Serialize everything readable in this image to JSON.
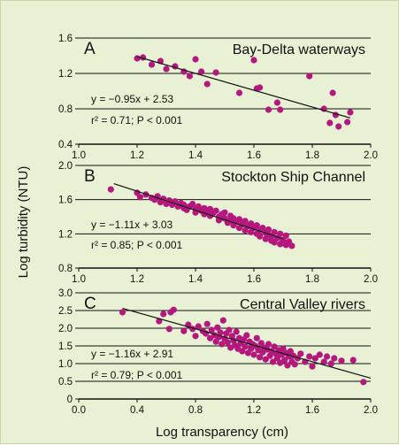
{
  "figure": {
    "ylabel": "Log turbidity (NTU)",
    "xlabel": "Log transparency (cm)",
    "point_color": "#b5177f",
    "background_color": "#e9f1d4",
    "grid_color": "#111111"
  },
  "chart_data": [
    {
      "type": "scatter",
      "letter": "A",
      "title": "Bay-Delta waterways",
      "equation_text": "y = −0.95x + 2.53",
      "stats_text": "r² = 0.71; P < 0.001",
      "xlim": [
        1.0,
        2.0
      ],
      "ylim": [
        0.4,
        1.6
      ],
      "xticks": [
        "1.0",
        "1.2",
        "1.4",
        "1.6",
        "1.8",
        "2.0"
      ],
      "yticks": [
        "0.4",
        "0.8",
        "1.2",
        "1.6"
      ],
      "grid": "horizontal",
      "fit": {
        "slope": -0.95,
        "intercept": 2.53,
        "x_range": [
          1.2,
          1.93
        ]
      },
      "points": [
        [
          1.2,
          1.37
        ],
        [
          1.22,
          1.38
        ],
        [
          1.25,
          1.3
        ],
        [
          1.28,
          1.34
        ],
        [
          1.3,
          1.25
        ],
        [
          1.33,
          1.28
        ],
        [
          1.36,
          1.22
        ],
        [
          1.38,
          1.17
        ],
        [
          1.4,
          1.36
        ],
        [
          1.42,
          1.22
        ],
        [
          1.44,
          1.08
        ],
        [
          1.47,
          1.21
        ],
        [
          1.55,
          0.98
        ],
        [
          1.6,
          1.35
        ],
        [
          1.61,
          1.03
        ],
        [
          1.62,
          1.04
        ],
        [
          1.65,
          0.79
        ],
        [
          1.68,
          0.87
        ],
        [
          1.69,
          0.79
        ],
        [
          1.79,
          1.17
        ],
        [
          1.84,
          0.8
        ],
        [
          1.86,
          0.64
        ],
        [
          1.87,
          0.98
        ],
        [
          1.88,
          0.73
        ],
        [
          1.89,
          0.6
        ],
        [
          1.92,
          0.65
        ],
        [
          1.93,
          0.76
        ]
      ]
    },
    {
      "type": "scatter",
      "letter": "B",
      "title": "Stockton Ship Channel",
      "equation_text": "y = −1.11x + 3.03",
      "stats_text": "r² = 0.85; P < 0.001",
      "xlim": [
        1.0,
        2.0
      ],
      "ylim": [
        0.8,
        2.0
      ],
      "xticks": [
        "1.0",
        "1.2",
        "1.4",
        "1.6",
        "1.8",
        "2.0"
      ],
      "yticks": [
        "0.8",
        "1.2",
        "1.6",
        "2.0"
      ],
      "grid": "horizontal",
      "fit": {
        "slope": -1.11,
        "intercept": 3.03,
        "x_range": [
          1.12,
          1.7
        ]
      },
      "points": [
        [
          1.11,
          1.72
        ],
        [
          1.2,
          1.68
        ],
        [
          1.21,
          1.63
        ],
        [
          1.23,
          1.66
        ],
        [
          1.25,
          1.62
        ],
        [
          1.26,
          1.6
        ],
        [
          1.27,
          1.64
        ],
        [
          1.28,
          1.57
        ],
        [
          1.29,
          1.61
        ],
        [
          1.3,
          1.55
        ],
        [
          1.31,
          1.59
        ],
        [
          1.32,
          1.54
        ],
        [
          1.33,
          1.58
        ],
        [
          1.34,
          1.52
        ],
        [
          1.35,
          1.56
        ],
        [
          1.36,
          1.5
        ],
        [
          1.36,
          1.54
        ],
        [
          1.37,
          1.48
        ],
        [
          1.38,
          1.52
        ],
        [
          1.39,
          1.55
        ],
        [
          1.4,
          1.49
        ],
        [
          1.4,
          1.45
        ],
        [
          1.41,
          1.52
        ],
        [
          1.42,
          1.47
        ],
        [
          1.43,
          1.5
        ],
        [
          1.43,
          1.43
        ],
        [
          1.44,
          1.46
        ],
        [
          1.45,
          1.49
        ],
        [
          1.45,
          1.41
        ],
        [
          1.46,
          1.44
        ],
        [
          1.47,
          1.47
        ],
        [
          1.48,
          1.4
        ],
        [
          1.48,
          1.36
        ],
        [
          1.49,
          1.43
        ],
        [
          1.5,
          1.38
        ],
        [
          1.5,
          1.45
        ],
        [
          1.51,
          1.33
        ],
        [
          1.52,
          1.41
        ],
        [
          1.52,
          1.36
        ],
        [
          1.53,
          1.3
        ],
        [
          1.53,
          1.38
        ],
        [
          1.54,
          1.34
        ],
        [
          1.55,
          1.27
        ],
        [
          1.55,
          1.37
        ],
        [
          1.56,
          1.31
        ],
        [
          1.57,
          1.35
        ],
        [
          1.57,
          1.24
        ],
        [
          1.58,
          1.29
        ],
        [
          1.59,
          1.22
        ],
        [
          1.59,
          1.32
        ],
        [
          1.6,
          1.27
        ],
        [
          1.61,
          1.2
        ],
        [
          1.61,
          1.3
        ],
        [
          1.62,
          1.24
        ],
        [
          1.62,
          1.17
        ],
        [
          1.63,
          1.27
        ],
        [
          1.64,
          1.21
        ],
        [
          1.64,
          1.14
        ],
        [
          1.65,
          1.19
        ],
        [
          1.65,
          1.25
        ],
        [
          1.66,
          1.12
        ],
        [
          1.66,
          1.17
        ],
        [
          1.67,
          1.22
        ],
        [
          1.67,
          1.1
        ],
        [
          1.68,
          1.15
        ],
        [
          1.69,
          1.2
        ],
        [
          1.69,
          1.08
        ],
        [
          1.7,
          1.13
        ],
        [
          1.71,
          1.07
        ],
        [
          1.71,
          1.18
        ],
        [
          1.72,
          1.11
        ],
        [
          1.73,
          1.06
        ]
      ]
    },
    {
      "type": "scatter",
      "letter": "C",
      "title": "Central Valley rivers",
      "equation_text": "y = −1.16x + 2.91",
      "stats_text": "r² = 0.79; P < 0.001",
      "xlim": [
        0.0,
        2.0
      ],
      "ylim": [
        0.0,
        3.0
      ],
      "xticks": [
        "0.0",
        "0.4",
        "0.8",
        "1.2",
        "1.6",
        "2.0"
      ],
      "yticks": [
        "0",
        "0.5",
        "1.0",
        "1.5",
        "2.0",
        "2.5",
        "3.0"
      ],
      "grid": "horizontal",
      "fit": {
        "slope": -1.16,
        "intercept": 2.91,
        "x_range": [
          0.3,
          2.0
        ]
      },
      "points": [
        [
          0.3,
          2.45
        ],
        [
          0.55,
          2.2
        ],
        [
          0.58,
          2.4
        ],
        [
          0.62,
          1.98
        ],
        [
          0.63,
          2.45
        ],
        [
          0.65,
          2.52
        ],
        [
          0.72,
          1.92
        ],
        [
          0.75,
          2.1
        ],
        [
          0.78,
          1.98
        ],
        [
          0.8,
          1.78
        ],
        [
          0.82,
          2.05
        ],
        [
          0.85,
          1.92
        ],
        [
          0.87,
          1.85
        ],
        [
          0.88,
          2.12
        ],
        [
          0.9,
          1.72
        ],
        [
          0.91,
          1.95
        ],
        [
          0.93,
          1.8
        ],
        [
          0.94,
          1.62
        ],
        [
          0.95,
          2.02
        ],
        [
          0.96,
          1.75
        ],
        [
          0.97,
          1.88
        ],
        [
          0.98,
          1.55
        ],
        [
          0.99,
          2.22
        ],
        [
          1.0,
          1.7
        ],
        [
          1.01,
          1.85
        ],
        [
          1.02,
          1.6
        ],
        [
          1.03,
          1.95
        ],
        [
          1.04,
          1.45
        ],
        [
          1.05,
          1.78
        ],
        [
          1.06,
          1.65
        ],
        [
          1.07,
          1.52
        ],
        [
          1.08,
          1.9
        ],
        [
          1.09,
          1.42
        ],
        [
          1.1,
          1.72
        ],
        [
          1.11,
          1.58
        ],
        [
          1.12,
          1.35
        ],
        [
          1.13,
          1.68
        ],
        [
          1.14,
          1.48
        ],
        [
          1.15,
          1.8
        ],
        [
          1.16,
          1.3
        ],
        [
          1.17,
          1.62
        ],
        [
          1.18,
          1.42
        ],
        [
          1.19,
          1.55
        ],
        [
          1.2,
          1.25
        ],
        [
          1.21,
          1.5
        ],
        [
          1.22,
          1.72
        ],
        [
          1.23,
          1.38
        ],
        [
          1.24,
          1.18
        ],
        [
          1.25,
          1.58
        ],
        [
          1.26,
          1.32
        ],
        [
          1.27,
          1.45
        ],
        [
          1.28,
          1.12
        ],
        [
          1.29,
          1.4
        ],
        [
          1.3,
          1.55
        ],
        [
          1.31,
          1.22
        ],
        [
          1.32,
          1.35
        ],
        [
          1.33,
          1.05
        ],
        [
          1.34,
          1.48
        ],
        [
          1.35,
          1.28
        ],
        [
          1.36,
          1.15
        ],
        [
          1.37,
          1.38
        ],
        [
          1.38,
          1.02
        ],
        [
          1.39,
          1.25
        ],
        [
          1.4,
          1.42
        ],
        [
          1.41,
          1.1
        ],
        [
          1.42,
          1.3
        ],
        [
          1.43,
          0.95
        ],
        [
          1.44,
          1.2
        ],
        [
          1.45,
          1.35
        ],
        [
          1.46,
          1.05
        ],
        [
          1.47,
          1.22
        ],
        [
          1.48,
          0.98
        ],
        [
          1.5,
          1.15
        ],
        [
          1.52,
          1.28
        ],
        [
          1.55,
          1.05
        ],
        [
          1.58,
          1.2
        ],
        [
          1.6,
          0.92
        ],
        [
          1.62,
          1.15
        ],
        [
          1.65,
          1.25
        ],
        [
          1.68,
          1.05
        ],
        [
          1.7,
          1.2
        ],
        [
          1.73,
          1.0
        ],
        [
          1.75,
          1.15
        ],
        [
          1.8,
          1.08
        ],
        [
          1.88,
          1.1
        ],
        [
          1.95,
          0.48
        ]
      ]
    }
  ]
}
